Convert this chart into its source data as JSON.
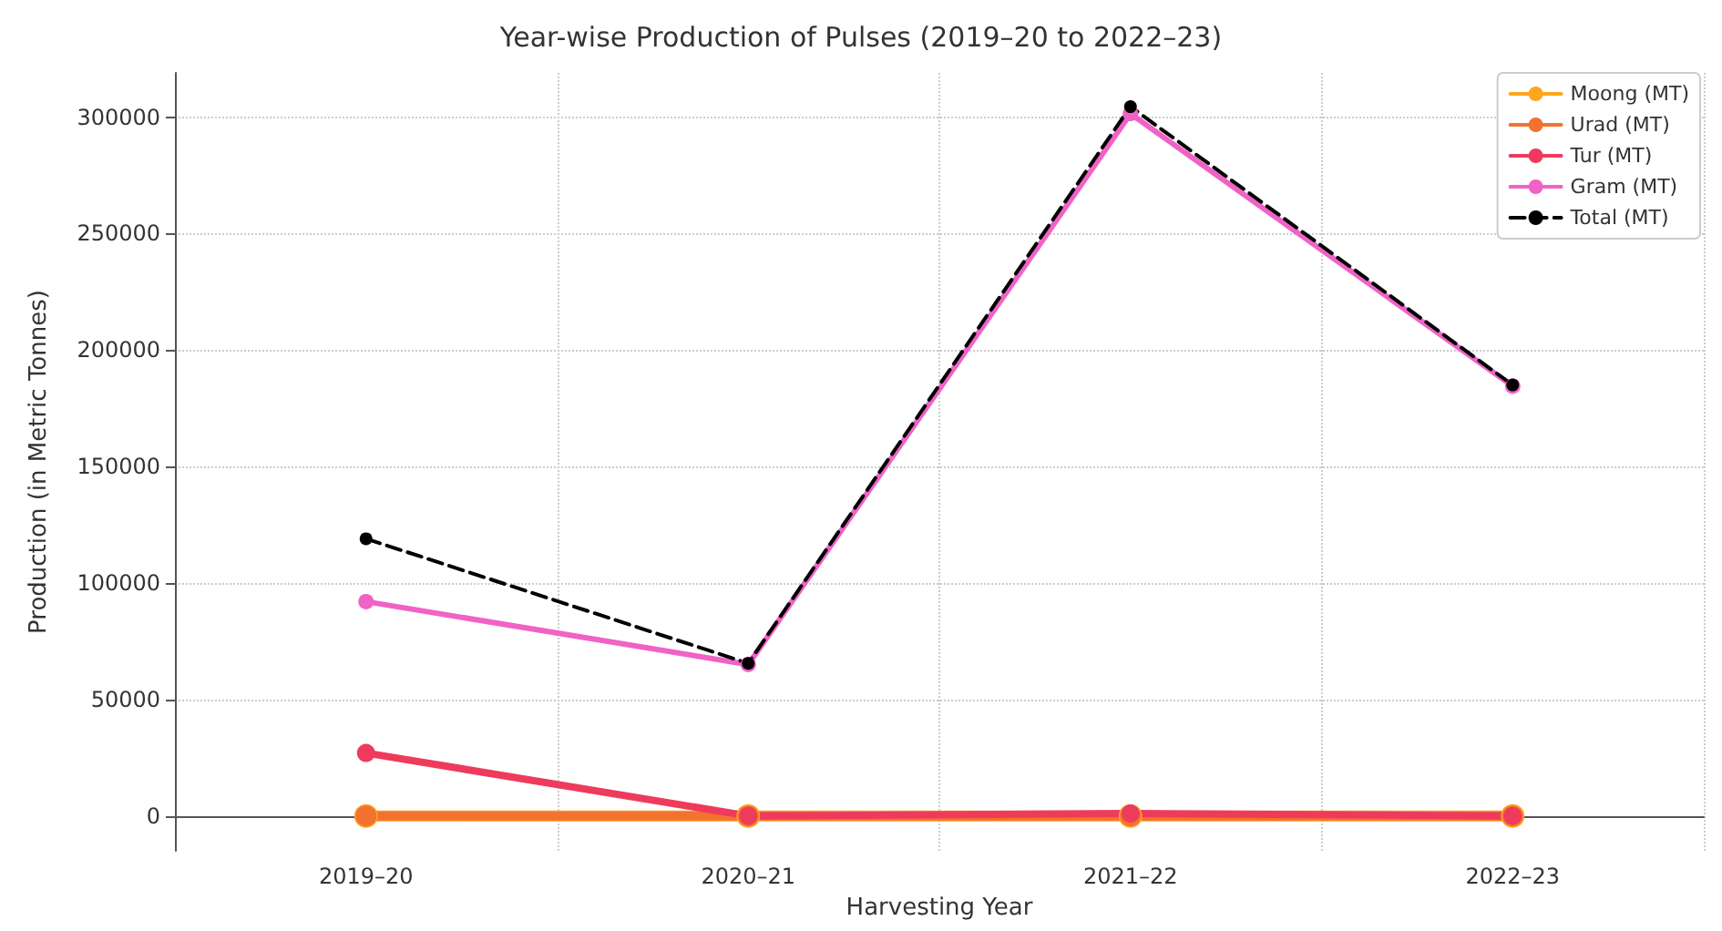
{
  "chart_data": {
    "type": "line",
    "title": "Year-wise Production of Pulses (2019–20 to 2022–23)",
    "xlabel": "Harvesting Year",
    "ylabel": "Production (in Metric Tonnes)",
    "categories": [
      "2019–20",
      "2020–21",
      "2021–22",
      "2022–23"
    ],
    "series": [
      {
        "name": "Moong (MT)",
        "color": "#ffa51e",
        "values": [
          0,
          0,
          0,
          0
        ]
      },
      {
        "name": "Urad (MT)",
        "color": "#f4722f",
        "values": [
          0,
          0,
          0,
          0
        ]
      },
      {
        "name": "Tur (MT)",
        "color": "#ee3b5c",
        "values": [
          27000,
          0,
          1000,
          0
        ]
      },
      {
        "name": "Gram (MT)",
        "color": "#f062c6",
        "values": [
          92000,
          65000,
          301500,
          184500
        ]
      },
      {
        "name": "Total (MT)",
        "color": "#000000",
        "values": [
          119000,
          65500,
          304500,
          185000
        ],
        "line_style": "dashed"
      }
    ],
    "ylim": [
      -15000,
      319000
    ],
    "yticks": [
      0,
      50000,
      100000,
      150000,
      200000,
      250000,
      300000
    ],
    "grid": true,
    "legend": "top right",
    "marker": "circle",
    "line_style": "solid"
  }
}
